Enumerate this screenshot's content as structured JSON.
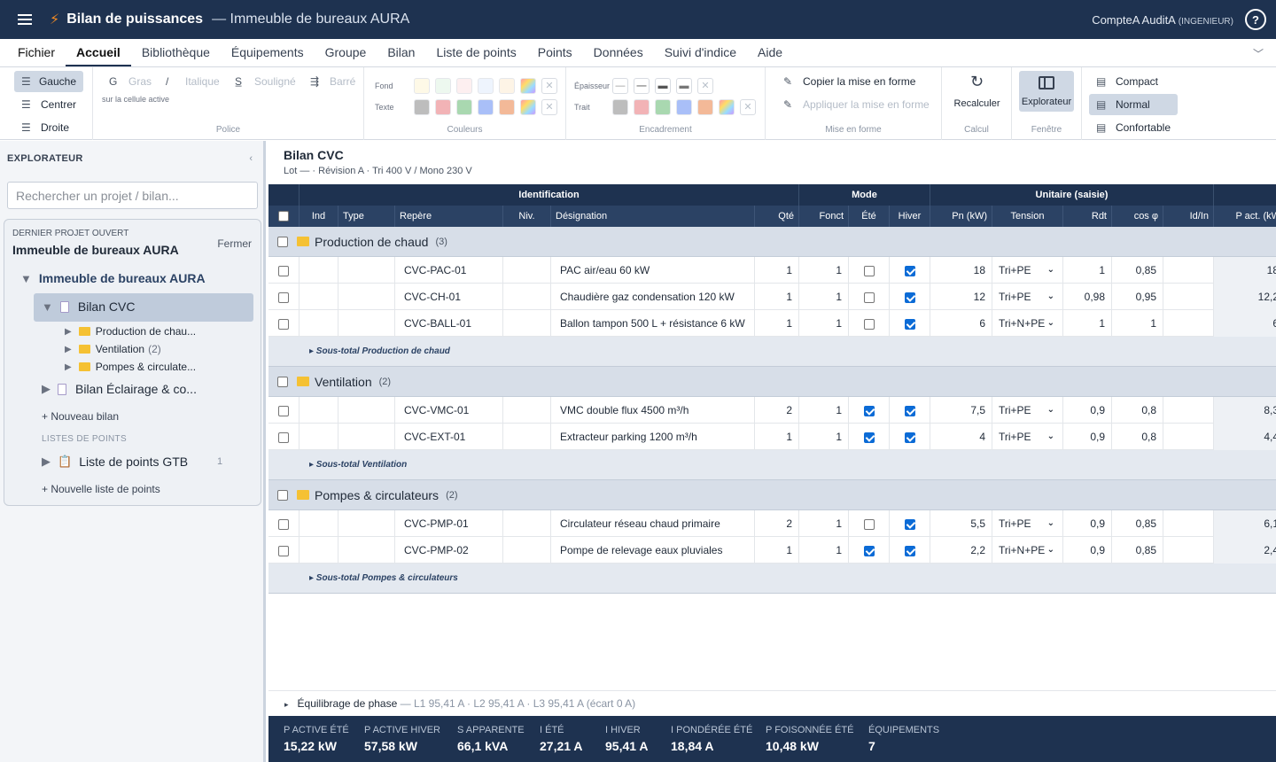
{
  "app": {
    "name": "Bilan de puissances",
    "subtitle": "— Immeuble de bureaux AURA",
    "user": "CompteA AuditA",
    "role": "(INGENIEUR)",
    "help": "?"
  },
  "menu": [
    "Fichier",
    "Accueil",
    "Bibliothèque",
    "Équipements",
    "Groupe",
    "Bilan",
    "Liste de points",
    "Points",
    "Données",
    "Suivi d'indice",
    "Aide"
  ],
  "ribbon": {
    "align": {
      "left": "Gauche",
      "center": "Centrer",
      "right": "Droite"
    },
    "police": {
      "bold": "Gras",
      "italic": "Italique",
      "underline": "Souligné",
      "strike": "Barré",
      "hint": "sur la cellule active",
      "label": "Police"
    },
    "couleurs": {
      "fond": "Fond",
      "texte": "Texte",
      "label": "Couleurs"
    },
    "encadrement": {
      "epaisseur": "Épaisseur",
      "trait": "Trait",
      "label": "Encadrement"
    },
    "mef": {
      "copy": "Copier la mise en forme",
      "apply": "Appliquer la mise en forme",
      "label": "Mise en forme"
    },
    "calcul": {
      "recalc": "Recalculer",
      "label": "Calcul"
    },
    "fenetre": {
      "explorer": "Explorateur",
      "label": "Fenêtre"
    },
    "density": {
      "compact": "Compact",
      "normal": "Normal",
      "comfortable": "Confortable"
    }
  },
  "sidebar": {
    "title": "EXPLORATEUR",
    "search_placeholder": "Rechercher un projet / bilan...",
    "last_label": "DERNIER PROJET OUVERT",
    "project": "Immeuble de bureaux AURA",
    "close": "Fermer",
    "tree_root": "Immeuble de bureaux AURA",
    "bilan_cvc": "Bilan CVC",
    "groups": [
      {
        "label": "Production de chau...",
        "count": ""
      },
      {
        "label": "Ventilation",
        "count": "(2)"
      },
      {
        "label": "Pompes & circulate...",
        "count": ""
      }
    ],
    "bilan_ecl": "Bilan Éclairage & co...",
    "new_bilan": "+ Nouveau bilan",
    "points_header": "LISTES DE POINTS",
    "points_list": "Liste de points GTB",
    "points_count": "1",
    "new_points": "+ Nouvelle liste de points"
  },
  "main": {
    "title": "Bilan CVC",
    "subtitle": "Lot — · Révision A · Tri 400 V / Mono 230 V",
    "header_groups": {
      "ident": "Identification",
      "mode": "Mode",
      "unit": "Unitaire (saisie)"
    },
    "cols": {
      "ind": "Ind",
      "type": "Type",
      "repere": "Repère",
      "niv": "Niv.",
      "designation": "Désignation",
      "qte": "Qté",
      "fonct": "Fonct",
      "ete": "Été",
      "hiver": "Hiver",
      "pn": "Pn (kW)",
      "tension": "Tension",
      "rdt": "Rdt",
      "cos": "cos φ",
      "idin": "Id/In",
      "pact": "P act. (kW"
    },
    "groups": [
      {
        "name": "Production de chaud",
        "count": "(3)",
        "subtotal": "▸ Sous-total Production de chaud",
        "rows": [
          {
            "repere": "CVC-PAC-01",
            "designation": "PAC air/eau 60 kW",
            "qte": "1",
            "fonct": "1",
            "ete": false,
            "hiver": true,
            "pn": "18",
            "tension": "Tri+PE",
            "rdt": "1",
            "cos": "0,85",
            "pact": "18"
          },
          {
            "repere": "CVC-CH-01",
            "designation": "Chaudière gaz condensation 120 kW",
            "qte": "1",
            "fonct": "1",
            "ete": false,
            "hiver": true,
            "pn": "12",
            "tension": "Tri+PE",
            "rdt": "0,98",
            "cos": "0,95",
            "pact": "12,2"
          },
          {
            "repere": "CVC-BALL-01",
            "designation": "Ballon tampon 500 L + résistance 6 kW",
            "qte": "1",
            "fonct": "1",
            "ete": false,
            "hiver": true,
            "pn": "6",
            "tension": "Tri+N+PE",
            "rdt": "1",
            "cos": "1",
            "pact": "6"
          }
        ]
      },
      {
        "name": "Ventilation",
        "count": "(2)",
        "subtotal": "▸ Sous-total Ventilation",
        "rows": [
          {
            "repere": "CVC-VMC-01",
            "designation": "VMC double flux 4500 m³/h",
            "qte": "2",
            "fonct": "1",
            "ete": true,
            "hiver": true,
            "pn": "7,5",
            "tension": "Tri+PE",
            "rdt": "0,9",
            "cos": "0,8",
            "pact": "8,3"
          },
          {
            "repere": "CVC-EXT-01",
            "designation": "Extracteur parking 1200 m³/h",
            "qte": "1",
            "fonct": "1",
            "ete": true,
            "hiver": true,
            "pn": "4",
            "tension": "Tri+PE",
            "rdt": "0,9",
            "cos": "0,8",
            "pact": "4,4"
          }
        ]
      },
      {
        "name": "Pompes & circulateurs",
        "count": "(2)",
        "subtotal": "▸ Sous-total Pompes & circulateurs",
        "rows": [
          {
            "repere": "CVC-PMP-01",
            "designation": "Circulateur réseau chaud primaire",
            "qte": "2",
            "fonct": "1",
            "ete": false,
            "hiver": true,
            "pn": "5,5",
            "tension": "Tri+PE",
            "rdt": "0,9",
            "cos": "0,85",
            "pact": "6,1"
          },
          {
            "repere": "CVC-PMP-02",
            "designation": "Pompe de relevage eaux pluviales",
            "qte": "1",
            "fonct": "1",
            "ete": true,
            "hiver": true,
            "pn": "2,2",
            "tension": "Tri+N+PE",
            "rdt": "0,9",
            "cos": "0,85",
            "pact": "2,4"
          }
        ]
      }
    ],
    "phase": {
      "label": "Équilibrage de phase",
      "values": "— L1 95,41 A · L2 95,41 A · L3 95,41 A (écart 0 A)"
    },
    "stats": [
      {
        "label": "P ACTIVE ÉTÉ",
        "value": "15,22 kW"
      },
      {
        "label": "P ACTIVE HIVER",
        "value": "57,58 kW"
      },
      {
        "label": "S APPARENTE",
        "value": "66,1 kVA"
      },
      {
        "label": "I ÉTÉ",
        "value": "27,21 A"
      },
      {
        "label": "I HIVER",
        "value": "95,41 A"
      },
      {
        "label": "I PONDÉRÉE ÉTÉ",
        "value": "18,84 A"
      },
      {
        "label": "P FOISONNÉE ÉTÉ",
        "value": "10,48 kW"
      },
      {
        "label": "ÉQUIPEMENTS",
        "value": "7"
      }
    ]
  },
  "colors": {
    "navy": "#1e3250",
    "accent": "#f08a24",
    "check": "#0b6bd6"
  }
}
